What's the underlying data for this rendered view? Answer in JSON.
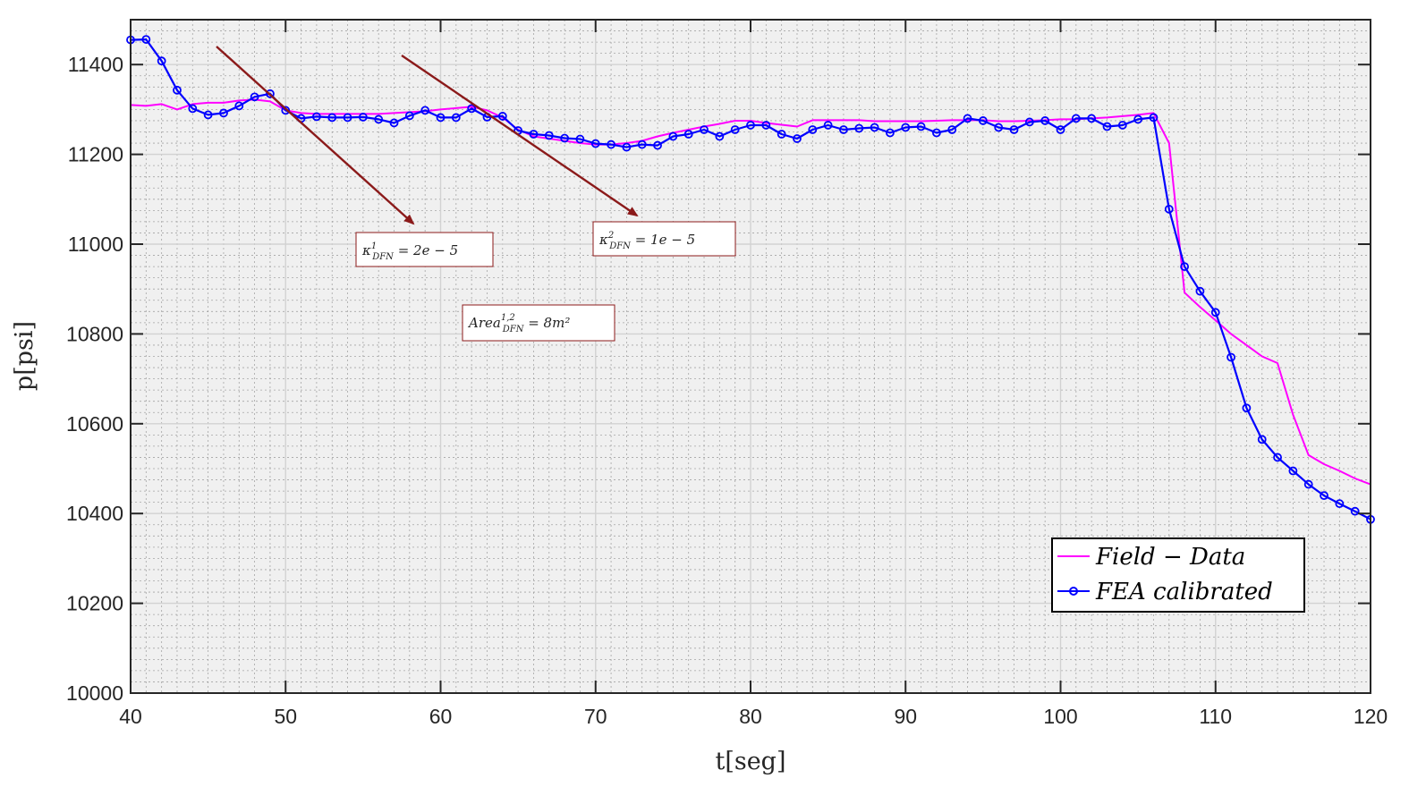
{
  "chart_data": {
    "type": "line",
    "xlabel": "t[seg]",
    "ylabel": "p[psi]",
    "xlim": [
      40,
      120
    ],
    "ylim": [
      10000,
      11500
    ],
    "xticks": [
      40,
      50,
      60,
      70,
      80,
      90,
      100,
      110,
      120
    ],
    "yticks": [
      10000,
      10200,
      10400,
      10600,
      10800,
      11000,
      11200,
      11400
    ],
    "grid": "on",
    "minor_grid": "on",
    "legend_position": "bottom-right",
    "series": [
      {
        "name": "Field − Data",
        "color": "#ff00ff",
        "marker": "none",
        "x": [
          40,
          41,
          42,
          43,
          44,
          45,
          46,
          47,
          48,
          49,
          50,
          51,
          52,
          53,
          54,
          55,
          56,
          57,
          58,
          59,
          60,
          61,
          62,
          63,
          64,
          65,
          66,
          67,
          68,
          69,
          70,
          71,
          72,
          73,
          74,
          75,
          76,
          77,
          78,
          79,
          80,
          81,
          82,
          83,
          84,
          85,
          86,
          87,
          88,
          89,
          90,
          91,
          92,
          93,
          94,
          95,
          96,
          97,
          98,
          99,
          100,
          101,
          102,
          103,
          104,
          105,
          106,
          107,
          108,
          109,
          110,
          111,
          112,
          113,
          114,
          115,
          116,
          117,
          118,
          119,
          120
        ],
        "y": [
          11310,
          11308,
          11312,
          11300,
          11312,
          11315,
          11315,
          11320,
          11322,
          11318,
          11298,
          11292,
          11290,
          11290,
          11290,
          11290,
          11290,
          11292,
          11294,
          11296,
          11300,
          11303,
          11306,
          11298,
          11282,
          11255,
          11240,
          11235,
          11230,
          11225,
          11222,
          11222,
          11225,
          11230,
          11240,
          11248,
          11255,
          11262,
          11268,
          11275,
          11275,
          11270,
          11266,
          11262,
          11276,
          11276,
          11276,
          11276,
          11274,
          11274,
          11274,
          11274,
          11275,
          11276,
          11276,
          11276,
          11274,
          11274,
          11275,
          11276,
          11278,
          11278,
          11280,
          11282,
          11285,
          11288,
          11292,
          11225,
          10892,
          10860,
          10830,
          10800,
          10775,
          10750,
          10735,
          10620,
          10530,
          10510,
          10495,
          10478,
          10465
        ]
      },
      {
        "name": "FEA calibrated",
        "color": "#0000ff",
        "marker": "circle",
        "x": [
          40,
          41,
          42,
          43,
          44,
          45,
          46,
          47,
          48,
          49,
          50,
          51,
          52,
          53,
          54,
          55,
          56,
          57,
          58,
          59,
          60,
          61,
          62,
          63,
          64,
          65,
          66,
          67,
          68,
          69,
          70,
          71,
          72,
          73,
          74,
          75,
          76,
          77,
          78,
          79,
          80,
          81,
          82,
          83,
          84,
          85,
          86,
          87,
          88,
          89,
          90,
          91,
          92,
          93,
          94,
          95,
          96,
          97,
          98,
          99,
          100,
          101,
          102,
          103,
          104,
          105,
          106,
          107,
          108,
          109,
          110,
          111,
          112,
          113,
          114,
          115,
          116,
          117,
          118,
          119,
          120
        ],
        "y": [
          11455,
          11456,
          11408,
          11343,
          11302,
          11288,
          11292,
          11308,
          11328,
          11335,
          11298,
          11280,
          11284,
          11282,
          11282,
          11283,
          11278,
          11270,
          11286,
          11298,
          11282,
          11282,
          11302,
          11283,
          11285,
          11253,
          11245,
          11242,
          11236,
          11234,
          11224,
          11222,
          11216,
          11222,
          11220,
          11240,
          11245,
          11255,
          11240,
          11255,
          11265,
          11265,
          11245,
          11235,
          11255,
          11265,
          11255,
          11258,
          11260,
          11248,
          11260,
          11262,
          11248,
          11255,
          11280,
          11275,
          11260,
          11255,
          11272,
          11275,
          11255,
          11280,
          11280,
          11262,
          11265,
          11278,
          11282,
          11078,
          10950,
          10895,
          10848,
          10748,
          10635,
          10565,
          10525,
          10495,
          10465,
          10440,
          10422,
          10405,
          10387
        ]
      }
    ],
    "annotations": [
      {
        "main": "κ",
        "sup": "1",
        "sub": "DFN",
        "rest": " = 2e − 5"
      },
      {
        "main": "κ",
        "sup": "2",
        "sub": "DFN",
        "rest": " = 1e − 5"
      },
      {
        "main": "Area",
        "sup": "1,2",
        "sub": "DFN",
        "rest": " = 8m²"
      }
    ]
  }
}
